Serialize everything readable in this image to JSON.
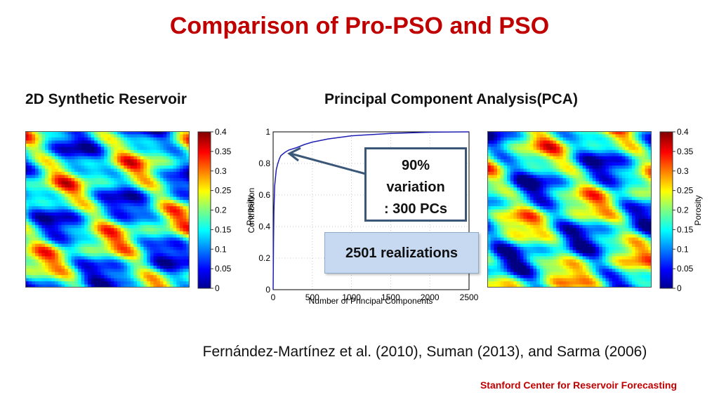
{
  "slide": {
    "title": "Comparison of Pro-PSO and PSO",
    "left_heading": "2D Synthetic Reservoir",
    "right_heading": "Principal Component Analysis(PCA)",
    "citation": "Fernández-Martínez et al. (2010), Suman (2013), and Sarma (2006)",
    "footer": "Stanford Center for Reservoir Forecasting"
  },
  "colorbar": {
    "label": "Porosity",
    "ticks": [
      "0.4",
      "0.35",
      "0.3",
      "0.25",
      "0.2",
      "0.15",
      "0.1",
      "0.05",
      "0"
    ]
  },
  "callouts": {
    "variation_line1": "90%",
    "variation_line2": "variation",
    "variation_line3": ": 300 PCs",
    "realizations": "2501 realizations"
  },
  "chart_data": {
    "type": "line",
    "xlabel": "Number of Principal Components",
    "ylabel": "Contribution",
    "xlim": [
      0,
      2500
    ],
    "ylim": [
      0,
      1
    ],
    "xticks": [
      "0",
      "500",
      "1000",
      "1500",
      "2000",
      "2500"
    ],
    "yticks": [
      "0",
      "0.2",
      "0.4",
      "0.6",
      "0.8",
      "1"
    ],
    "grid": true,
    "series": [
      {
        "color": "#1f1fb4",
        "x": [
          1,
          5,
          10,
          20,
          40,
          60,
          80,
          100,
          150,
          200,
          300,
          400,
          500,
          700,
          1000,
          1500,
          2000,
          2500
        ],
        "y": [
          0.05,
          0.3,
          0.5,
          0.66,
          0.76,
          0.8,
          0.83,
          0.85,
          0.87,
          0.885,
          0.9,
          0.92,
          0.935,
          0.955,
          0.975,
          0.99,
          0.998,
          1.0
        ]
      }
    ]
  }
}
